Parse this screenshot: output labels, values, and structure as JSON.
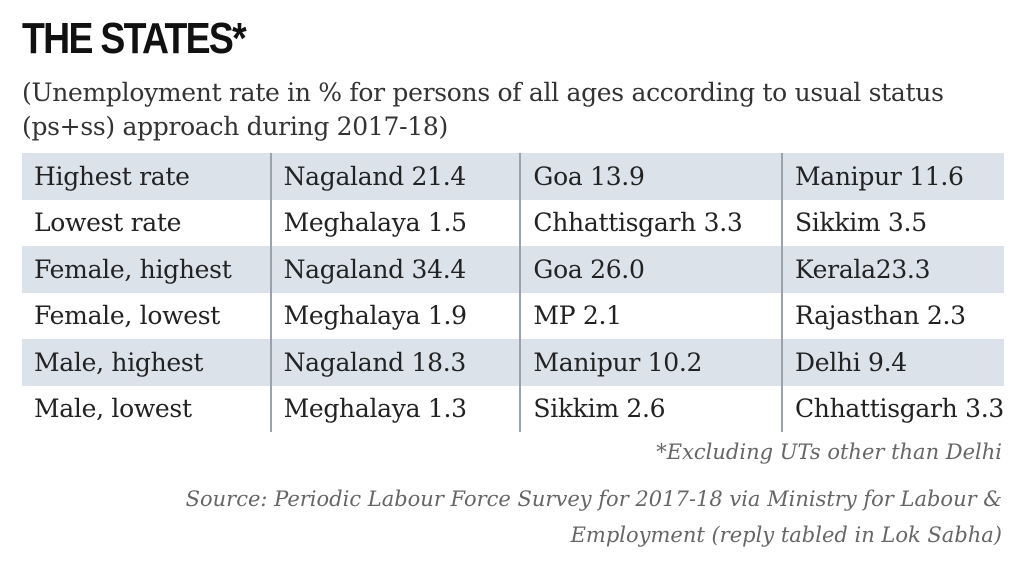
{
  "header": {
    "title": "THE STATES*",
    "subtitle_lines": [
      "(Unemployment rate in % for persons of all ages according to usual status",
      "(ps+ss) approach during 2017-18)"
    ]
  },
  "table": {
    "rows": [
      [
        "Highest rate",
        "Nagaland 21.4",
        "Goa 13.9",
        "Manipur 11.6"
      ],
      [
        "Lowest rate",
        "Meghalaya 1.5",
        "Chhattisgarh 3.3",
        "Sikkim 3.5"
      ],
      [
        "Female, highest",
        "Nagaland 34.4",
        "Goa 26.0",
        "Kerala23.3"
      ],
      [
        "Female, lowest",
        "Meghalaya 1.9",
        "MP 2.1",
        "Rajasthan 2.3"
      ],
      [
        "Male, highest",
        "Nagaland 18.3",
        "Manipur 10.2",
        "Delhi 9.4"
      ],
      [
        "Male, lowest",
        "Meghalaya 1.3",
        "Sikkim 2.6",
        "Chhattisgarh 3.3"
      ]
    ]
  },
  "footnote": "*Excluding UTs other than Delhi",
  "source_lines": [
    "Source: Periodic Labour Force Survey for 2017-18 via Ministry for Labour &",
    "Employment  (reply tabled in Lok Sabha)"
  ]
}
